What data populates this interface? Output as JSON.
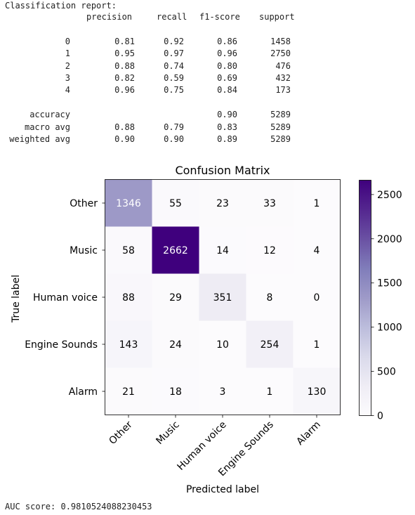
{
  "report": {
    "title": "Classification report:",
    "headers": [
      "precision",
      "recall",
      "f1-score",
      "support"
    ],
    "rows": [
      {
        "label": "0",
        "precision": "0.81",
        "recall": "0.92",
        "f1": "0.86",
        "support": "1458"
      },
      {
        "label": "1",
        "precision": "0.95",
        "recall": "0.97",
        "f1": "0.96",
        "support": "2750"
      },
      {
        "label": "2",
        "precision": "0.88",
        "recall": "0.74",
        "f1": "0.80",
        "support": "476"
      },
      {
        "label": "3",
        "precision": "0.82",
        "recall": "0.59",
        "f1": "0.69",
        "support": "432"
      },
      {
        "label": "4",
        "precision": "0.96",
        "recall": "0.75",
        "f1": "0.84",
        "support": "173"
      }
    ],
    "summary": [
      {
        "label": "accuracy",
        "precision": "",
        "recall": "",
        "f1": "0.90",
        "support": "5289"
      },
      {
        "label": "macro avg",
        "precision": "0.88",
        "recall": "0.79",
        "f1": "0.83",
        "support": "5289"
      },
      {
        "label": "weighted avg",
        "precision": "0.90",
        "recall": "0.90",
        "f1": "0.89",
        "support": "5289"
      }
    ]
  },
  "chart_data": {
    "type": "heatmap",
    "title": "Confusion Matrix",
    "xlabel": "Predicted label",
    "ylabel": "True label",
    "x_categories": [
      "Other",
      "Music",
      "Human voice",
      "Engine Sounds",
      "Alarm"
    ],
    "y_categories": [
      "Other",
      "Music",
      "Human voice",
      "Engine Sounds",
      "Alarm"
    ],
    "values": [
      [
        1346,
        55,
        23,
        33,
        1
      ],
      [
        58,
        2662,
        14,
        12,
        4
      ],
      [
        88,
        29,
        351,
        8,
        0
      ],
      [
        143,
        24,
        10,
        254,
        1
      ],
      [
        21,
        18,
        3,
        1,
        130
      ]
    ],
    "colormap": "Purples",
    "colorbar_ticks": [
      0,
      500,
      1000,
      1500,
      2000,
      2500
    ],
    "colorbar_range": [
      0,
      2662
    ],
    "colors": {
      "low": "#fcfbfd",
      "high": "#3f007d",
      "text_dark": "#000000",
      "text_light": "#ffffff"
    }
  },
  "footer": {
    "auc": "AUC score: 0.9810524088230453"
  }
}
